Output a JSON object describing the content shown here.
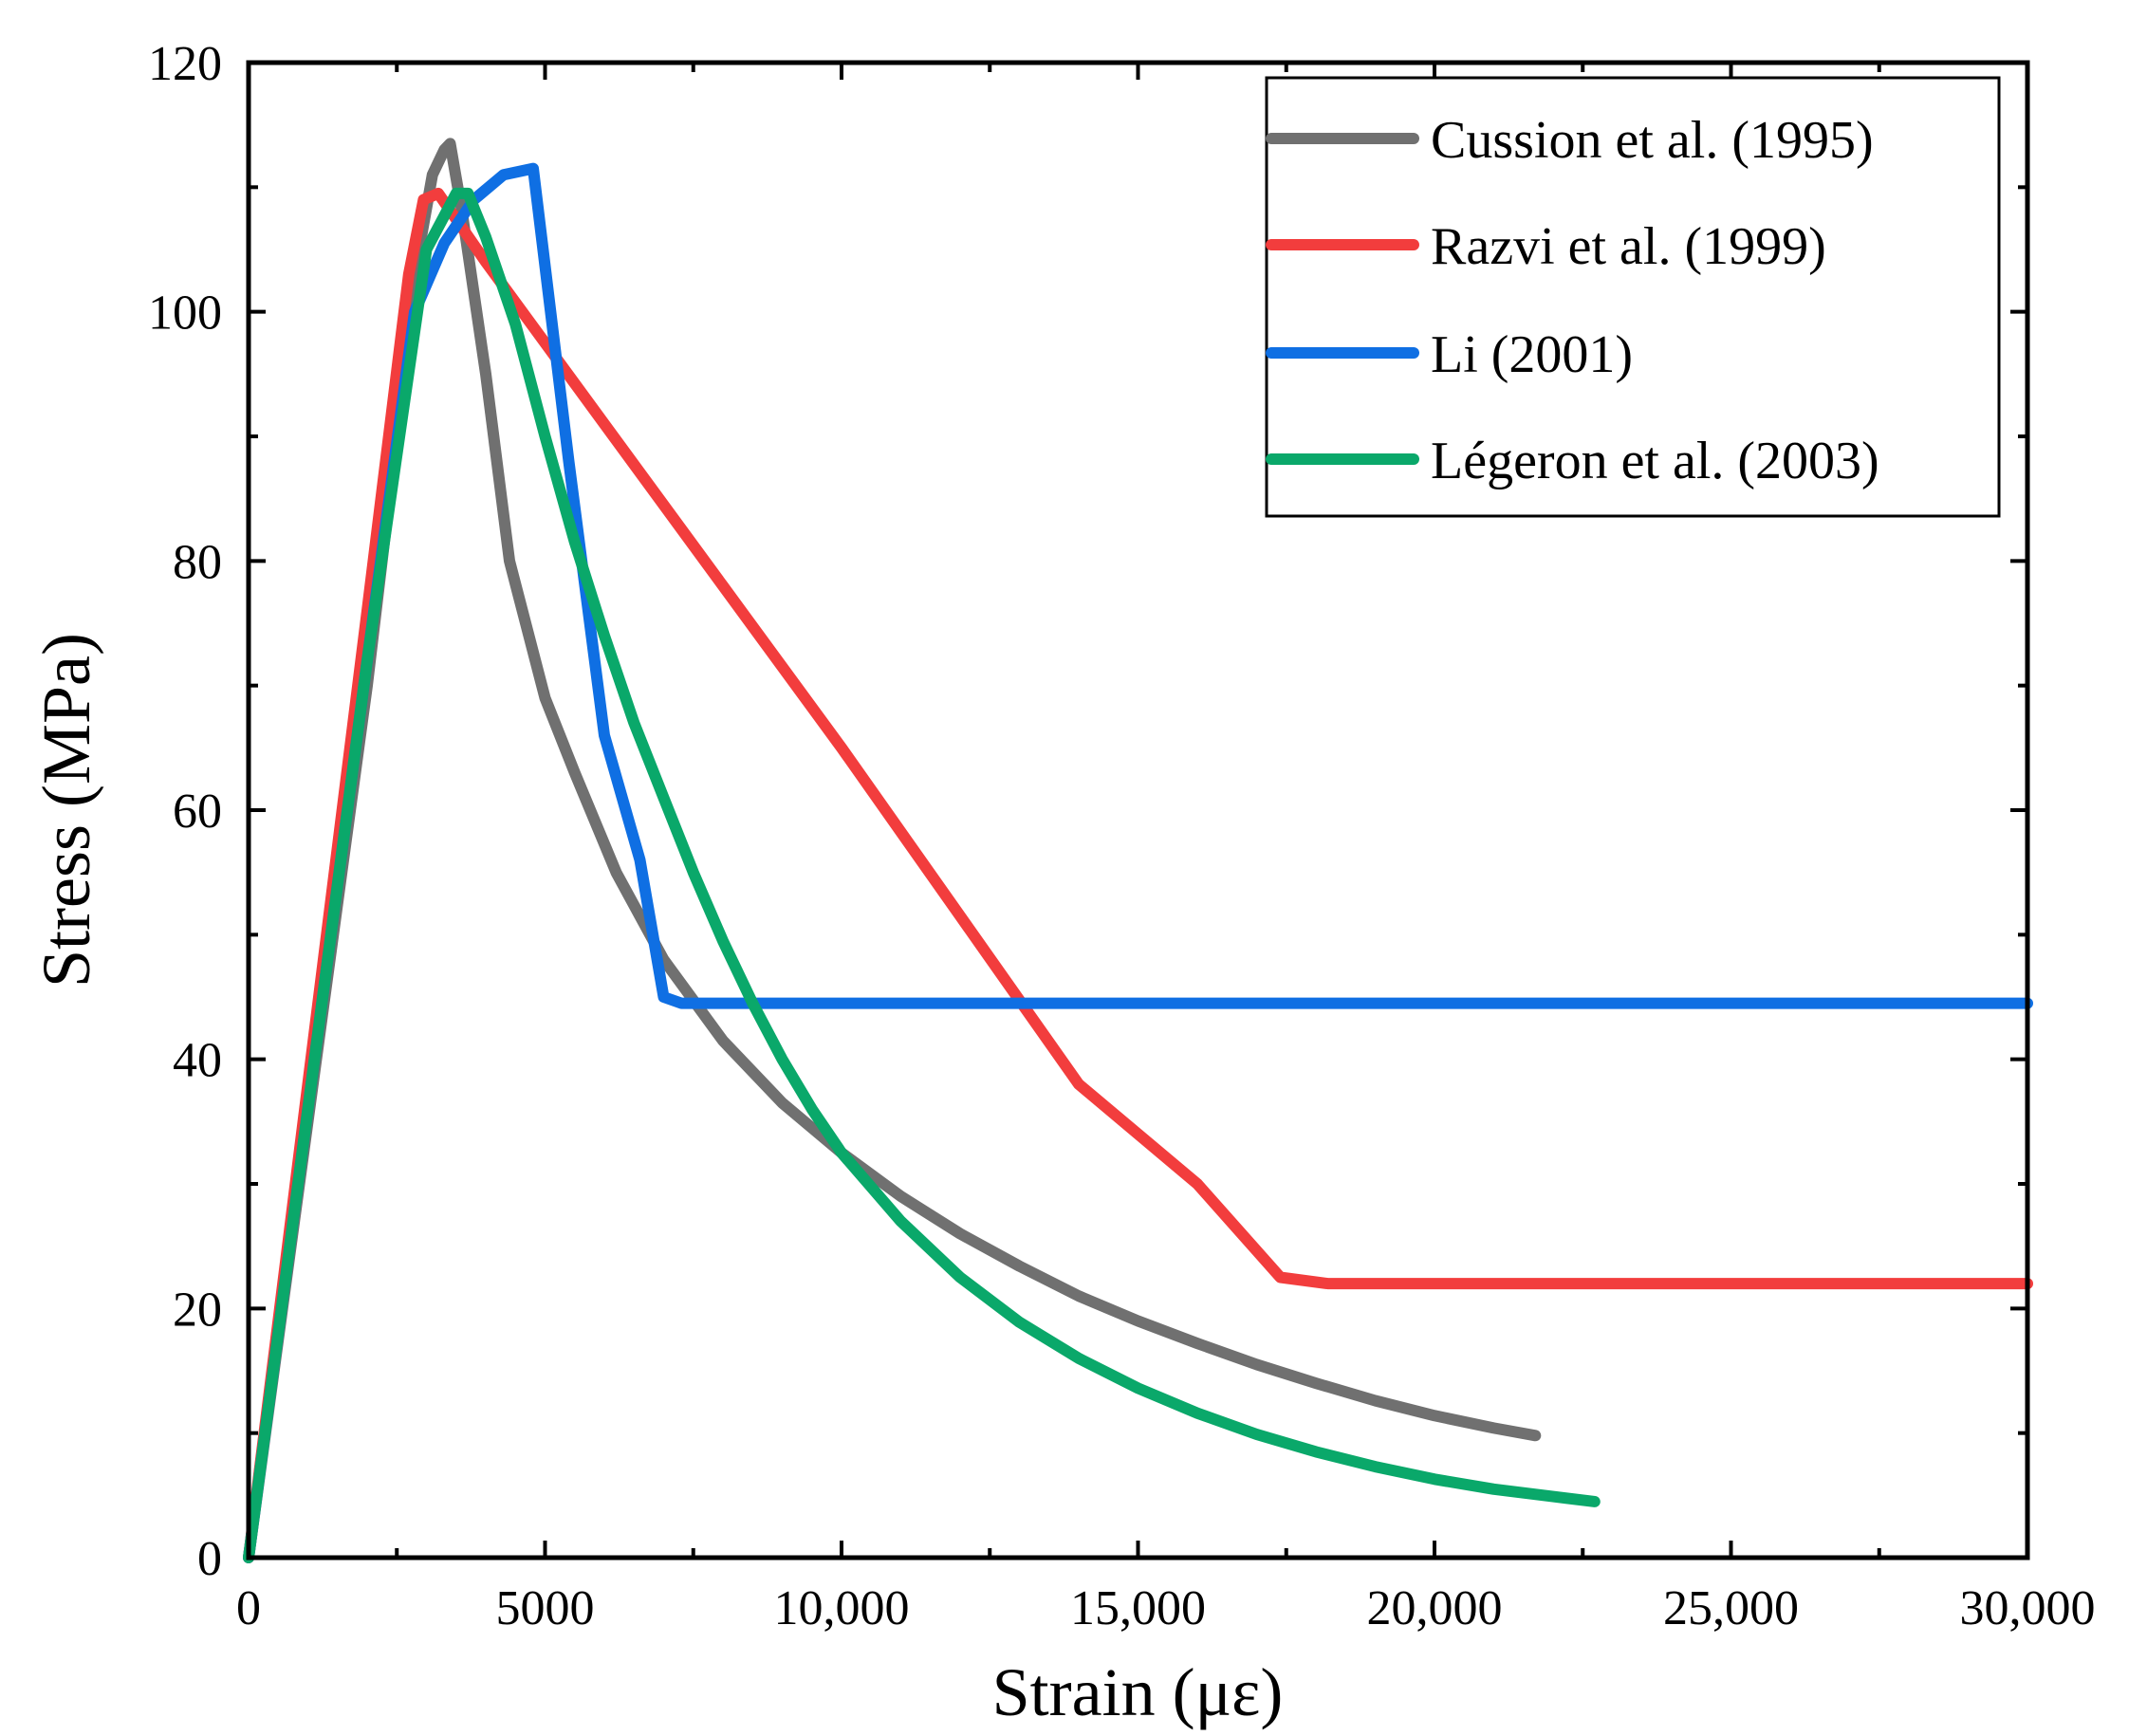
{
  "chart_data": {
    "type": "line",
    "title": "",
    "xlabel": "Strain (με)",
    "ylabel": "Stress (MPa)",
    "xlim": [
      0,
      30000
    ],
    "ylim": [
      0,
      120
    ],
    "x_ticks": [
      0,
      5000,
      10000,
      15000,
      20000,
      25000,
      30000
    ],
    "x_tick_labels": [
      "0",
      "5000",
      "10,000",
      "15,000",
      "20,000",
      "25,000",
      "30,000"
    ],
    "y_ticks": [
      0,
      20,
      40,
      60,
      80,
      100,
      120
    ],
    "y_tick_labels": [
      "0",
      "20",
      "40",
      "60",
      "80",
      "100",
      "120"
    ],
    "grid": false,
    "legend_position": "top-right",
    "series": [
      {
        "name": "Cussion et al. (1995)",
        "color": "#707070",
        "x": [
          0,
          1000,
          2000,
          2500,
          2800,
          3100,
          3300,
          3400,
          3600,
          4000,
          4400,
          5000,
          5500,
          6200,
          7000,
          8000,
          9000,
          10000,
          11000,
          12000,
          13000,
          14000,
          15000,
          16000,
          17000,
          18000,
          19000,
          20000,
          21000,
          21700
        ],
        "y": [
          0,
          35,
          70,
          90,
          103,
          111,
          113,
          113.5,
          108,
          95,
          80,
          69,
          63,
          55,
          48,
          41.5,
          36.5,
          32.5,
          29,
          26,
          23.4,
          21,
          19,
          17.2,
          15.5,
          14,
          12.6,
          11.4,
          10.4,
          9.8
        ]
      },
      {
        "name": "Razvi et al. (1999)",
        "color": "#f23d3d",
        "x": [
          0,
          1000,
          2000,
          2700,
          2950,
          3200,
          4000,
          6000,
          8000,
          10000,
          12000,
          14000,
          16000,
          17400,
          18200,
          22000,
          26000,
          30000
        ],
        "y": [
          0,
          38,
          76,
          103,
          109,
          109.5,
          104,
          91,
          78,
          65,
          51.5,
          38,
          30,
          22.5,
          22,
          22,
          22,
          22
        ]
      },
      {
        "name": "Li (2001)",
        "color": "#0f6fe3",
        "x": [
          0,
          1000,
          2000,
          2800,
          3300,
          3800,
          4300,
          4800,
          5400,
          6000,
          6600,
          7000,
          7300,
          10000,
          15000,
          20000,
          25000,
          30000
        ],
        "y": [
          0,
          36,
          72,
          100,
          105.5,
          109,
          111,
          111.5,
          88,
          66,
          56,
          45,
          44.5,
          44.5,
          44.5,
          44.5,
          44.5,
          44.5
        ]
      },
      {
        "name": "Légeron et al. (2003)",
        "color": "#0aa86a",
        "x": [
          0,
          1000,
          2000,
          3000,
          3500,
          3700,
          4000,
          4500,
          5000,
          5500,
          6000,
          6500,
          7000,
          7500,
          8000,
          8500,
          9000,
          9500,
          10000,
          11000,
          12000,
          13000,
          14000,
          15000,
          16000,
          17000,
          18000,
          19000,
          20000,
          21000,
          22000,
          22700
        ],
        "y": [
          0,
          36,
          72,
          105,
          109.5,
          109.5,
          106,
          99,
          90,
          81.5,
          74,
          67,
          61,
          55,
          49.5,
          44.5,
          40,
          36,
          32.5,
          27,
          22.5,
          18.9,
          16,
          13.6,
          11.6,
          9.9,
          8.5,
          7.3,
          6.3,
          5.5,
          4.9,
          4.5
        ]
      }
    ]
  }
}
